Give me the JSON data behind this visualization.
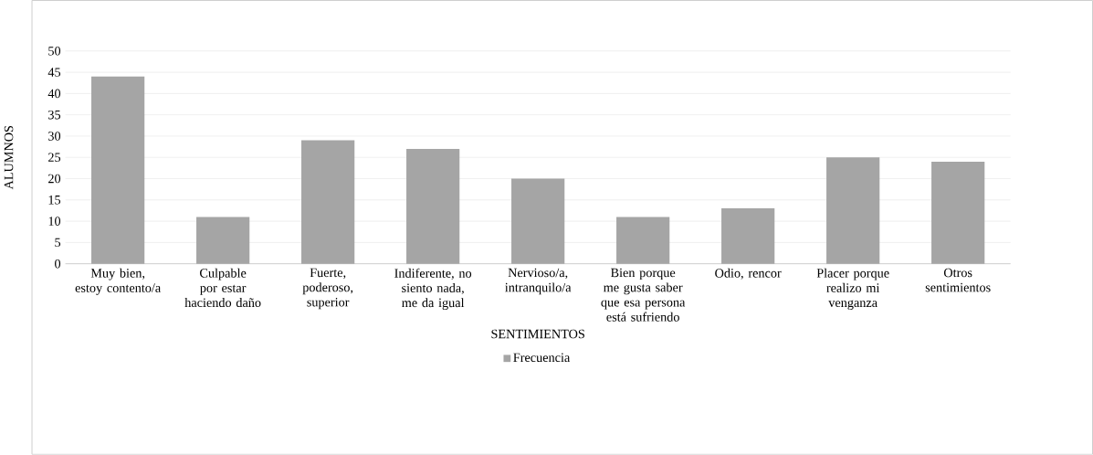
{
  "chart_data": {
    "type": "bar",
    "xlabel": "SENTIMIENTOS",
    "ylabel": "ALUMNOS",
    "categories": [
      "Muy bien, estoy contento/a",
      "Culpable por estar haciendo daño",
      "Fuerte, poderoso, superior",
      "Indiferente, no siento nada, me da igual",
      "Nervioso/a, intranquilo/a",
      "Bien porque me gusta saber que esa persona está sufriendo",
      "Odio, rencor",
      "Placer porque realizo mi venganza",
      "Otros sentimientos"
    ],
    "series": [
      {
        "name": "Frecuencia",
        "color": "#a5a5a5",
        "values": [
          44,
          11,
          29,
          27,
          20,
          11,
          13,
          25,
          24
        ]
      }
    ],
    "ylim": [
      0,
      50
    ],
    "yticks": [
      0,
      5,
      10,
      15,
      20,
      25,
      30,
      35,
      40,
      45,
      50
    ],
    "grid": "y",
    "legend": "bottom"
  }
}
